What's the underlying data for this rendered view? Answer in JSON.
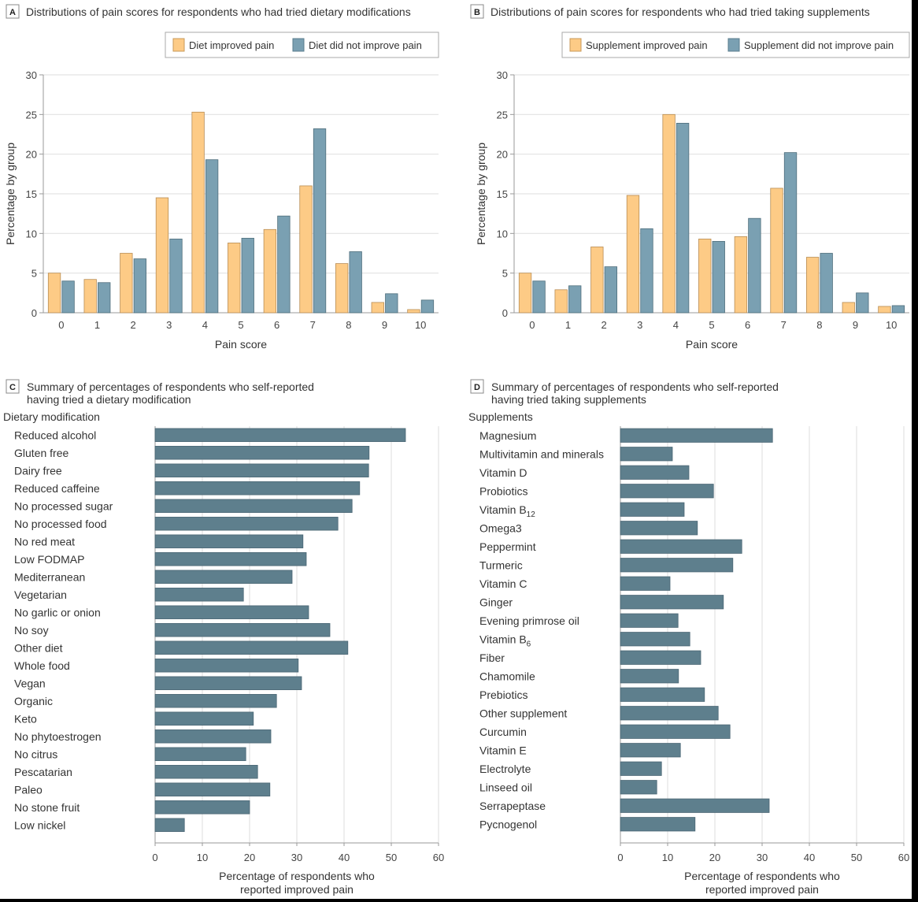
{
  "chart_data": [
    {
      "panel": "A",
      "type": "bar",
      "title": "Distributions of pain scores for respondents who had tried dietary modifications",
      "xlabel": "Pain score",
      "ylabel": "Percentage by group",
      "ylim": [
        0,
        30
      ],
      "yticks": [
        0,
        5,
        10,
        15,
        20,
        25,
        30
      ],
      "categories": [
        "0",
        "1",
        "2",
        "3",
        "4",
        "5",
        "6",
        "7",
        "8",
        "9",
        "10"
      ],
      "grid": true,
      "legend": "top-right",
      "series": [
        {
          "name": "Diet improved pain",
          "color": "#FDCB86",
          "values": [
            5.0,
            4.2,
            7.5,
            14.5,
            25.3,
            8.8,
            10.5,
            16.0,
            6.2,
            1.3,
            0.4
          ]
        },
        {
          "name": "Diet did not improve pain",
          "color": "#7AA0B2",
          "values": [
            4.0,
            3.8,
            6.8,
            9.3,
            19.3,
            9.4,
            12.2,
            23.2,
            7.7,
            2.4,
            1.6
          ]
        }
      ]
    },
    {
      "panel": "B",
      "type": "bar",
      "title": "Distributions of pain scores for respondents who had tried taking supplements",
      "xlabel": "Pain score",
      "ylabel": "Percentage by group",
      "ylim": [
        0,
        30
      ],
      "yticks": [
        0,
        5,
        10,
        15,
        20,
        25,
        30
      ],
      "categories": [
        "0",
        "1",
        "2",
        "3",
        "4",
        "5",
        "6",
        "7",
        "8",
        "9",
        "10"
      ],
      "grid": true,
      "legend": "top-right",
      "series": [
        {
          "name": "Supplement improved pain",
          "color": "#FDCB86",
          "values": [
            5.0,
            2.9,
            8.3,
            14.8,
            25.0,
            9.3,
            9.6,
            15.7,
            7.0,
            1.3,
            0.8
          ]
        },
        {
          "name": "Supplement did not improve pain",
          "color": "#7AA0B2",
          "values": [
            4.0,
            3.4,
            5.8,
            10.6,
            23.9,
            9.0,
            11.9,
            20.2,
            7.5,
            2.5,
            0.9
          ]
        }
      ]
    },
    {
      "panel": "C",
      "type": "bar",
      "orientation": "horizontal",
      "title_lines": [
        "Summary of percentages of respondents who self-reported",
        "having tried a dietary modification"
      ],
      "category_axis_title": "Dietary modification",
      "xlabel_lines": [
        "Percentage of respondents who",
        "reported improved pain"
      ],
      "xlim": [
        0,
        60
      ],
      "xticks": [
        0,
        10,
        20,
        30,
        40,
        50,
        60
      ],
      "grid": true,
      "color": "#5E7F8D",
      "categories": [
        "Reduced alcohol",
        "Gluten free",
        "Dairy free",
        "Reduced caffeine",
        "No processed sugar",
        "No processed food",
        "No red meat",
        "Low FODMAP",
        "Mediterranean",
        "Vegetarian",
        "No garlic or onion",
        "No soy",
        "Other diet",
        "Whole food",
        "Vegan",
        "Organic",
        "Keto",
        "No phytoestrogen",
        "No citrus",
        "Pescatarian",
        "Paleo",
        "No stone fruit",
        "Low nickel"
      ],
      "values": [
        53.0,
        45.3,
        45.2,
        43.3,
        41.7,
        38.7,
        31.3,
        32.0,
        29.0,
        18.7,
        32.5,
        37.0,
        40.8,
        30.3,
        31.0,
        25.7,
        20.8,
        24.5,
        19.2,
        21.7,
        24.3,
        20.0,
        6.2
      ]
    },
    {
      "panel": "D",
      "type": "bar",
      "orientation": "horizontal",
      "title_lines": [
        "Summary of percentages of respondents who self-reported",
        "having tried taking supplements"
      ],
      "category_axis_title": "Supplements",
      "xlabel_lines": [
        "Percentage of respondents who",
        "reported improved pain"
      ],
      "xlim": [
        0,
        60
      ],
      "xticks": [
        0,
        10,
        20,
        30,
        40,
        50,
        60
      ],
      "grid": true,
      "color": "#5E7F8D",
      "categories": [
        {
          "text": "Magnesium"
        },
        {
          "text": "Multivitamin and minerals"
        },
        {
          "text": "Vitamin D"
        },
        {
          "text": "Probiotics"
        },
        {
          "text": "Vitamin B",
          "sub": "12"
        },
        {
          "text": "Omega3"
        },
        {
          "text": "Peppermint"
        },
        {
          "text": "Turmeric"
        },
        {
          "text": "Vitamin C"
        },
        {
          "text": "Ginger"
        },
        {
          "text": "Evening primrose oil"
        },
        {
          "text": "Vitamin B",
          "sub": "6"
        },
        {
          "text": "Fiber"
        },
        {
          "text": "Chamomile"
        },
        {
          "text": "Prebiotics"
        },
        {
          "text": "Other supplement"
        },
        {
          "text": "Curcumin"
        },
        {
          "text": "Vitamin E"
        },
        {
          "text": "Electrolyte"
        },
        {
          "text": "Linseed oil"
        },
        {
          "text": "Serrapeptase"
        },
        {
          "text": "Pycnogenol"
        }
      ],
      "values": [
        32.2,
        11.0,
        14.5,
        19.7,
        13.5,
        16.3,
        25.7,
        23.8,
        10.5,
        21.8,
        12.2,
        14.7,
        17.0,
        12.3,
        17.8,
        20.7,
        23.2,
        12.7,
        8.7,
        7.7,
        31.5,
        15.8
      ]
    }
  ]
}
